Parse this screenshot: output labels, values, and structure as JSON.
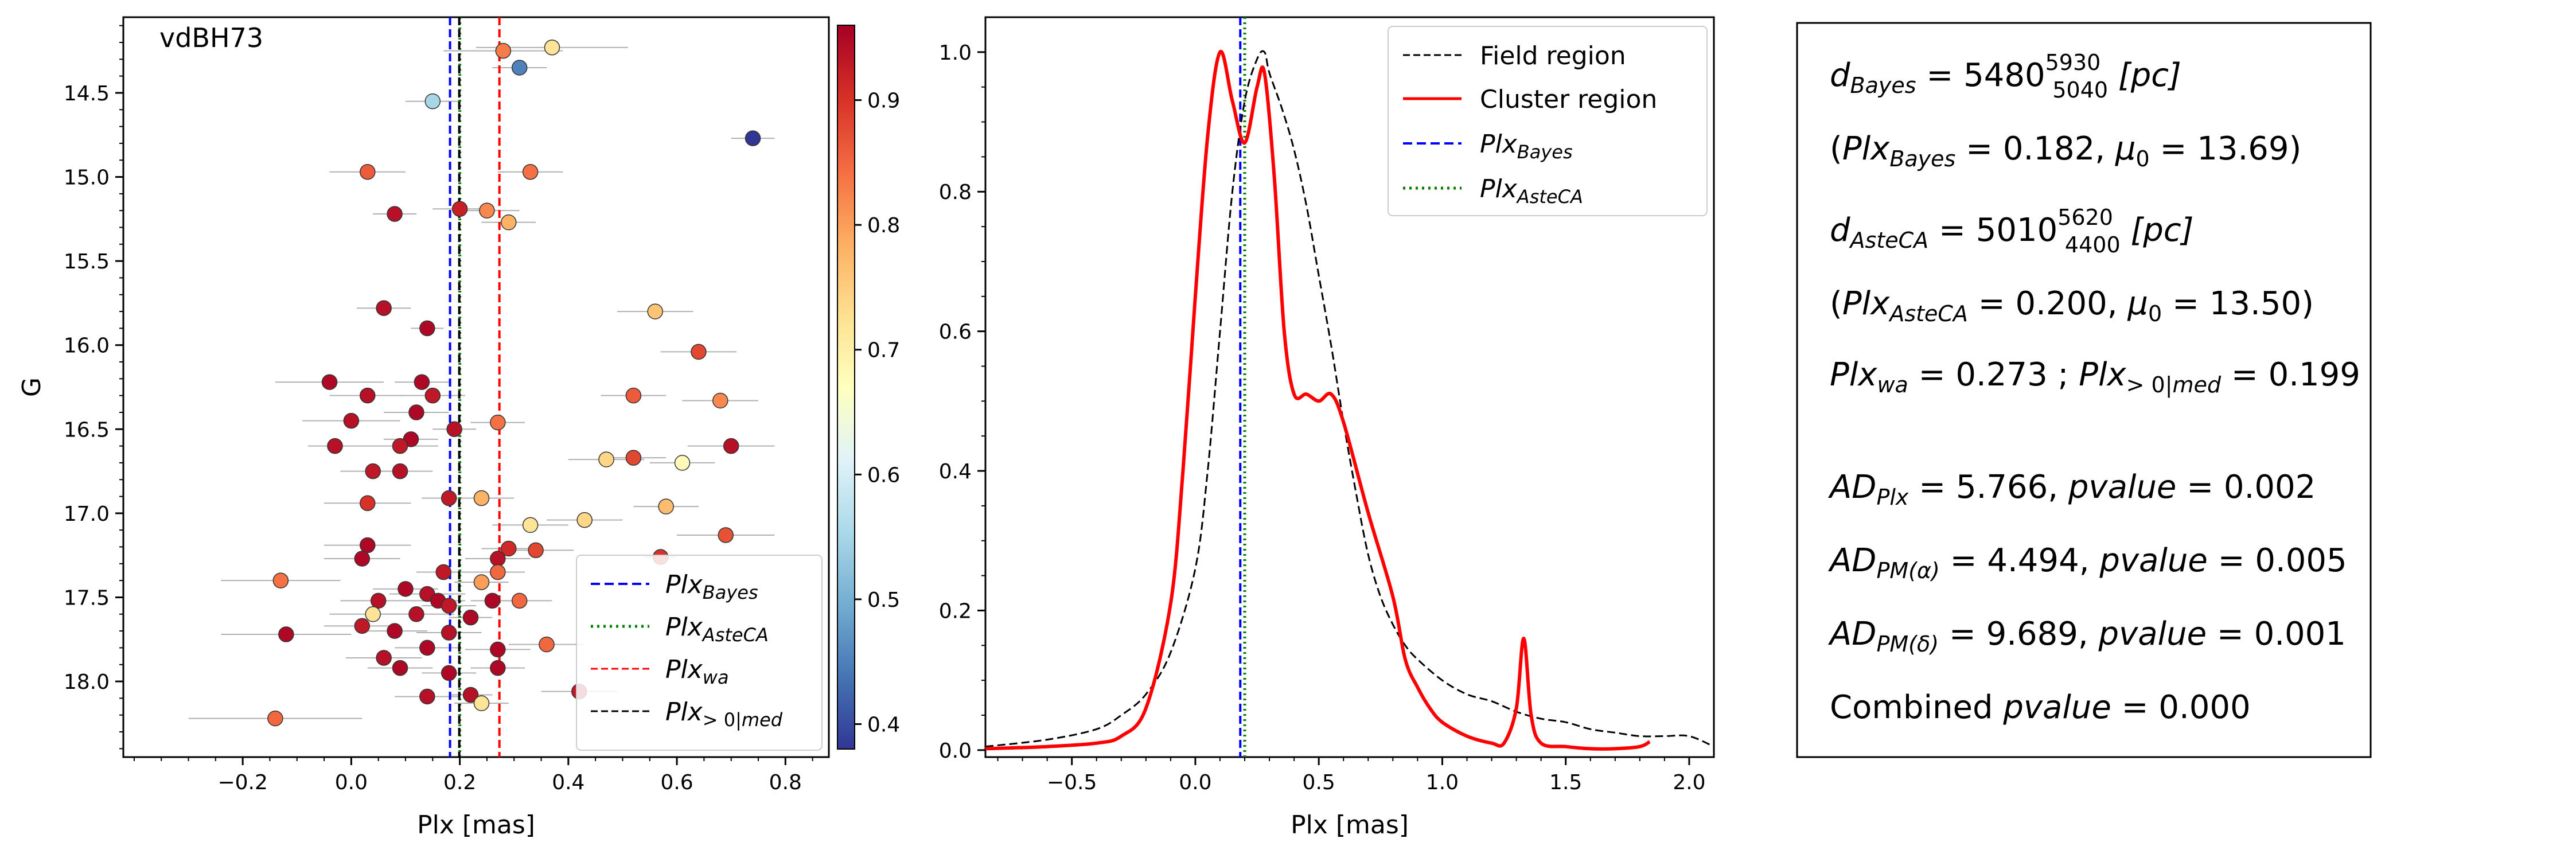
{
  "chart_data": [
    {
      "type": "scatter",
      "title": "vdBH73",
      "xlabel": "Plx [mas]",
      "ylabel": "G",
      "xlim": [
        -0.42,
        0.88
      ],
      "ylim": [
        18.45,
        14.05
      ],
      "y_inverted": true,
      "xticks": [
        -0.2,
        0.0,
        0.2,
        0.4,
        0.6,
        0.8
      ],
      "yticks": [
        14.5,
        15.0,
        15.5,
        16.0,
        16.5,
        17.0,
        17.5,
        18.0
      ],
      "colorbar": {
        "range": [
          0.38,
          0.96
        ],
        "ticks": [
          0.4,
          0.5,
          0.6,
          0.7,
          0.8,
          0.9
        ],
        "colormap": "RdYlBu_r"
      },
      "lines": [
        {
          "name": "Plx_Bayes",
          "x": 0.182,
          "color": "#0000ff",
          "style": "dashed"
        },
        {
          "name": "Plx_AsteCA",
          "x": 0.2,
          "color": "#008000",
          "style": "dotted"
        },
        {
          "name": "Plx_wa",
          "x": 0.273,
          "color": "#ff0000",
          "style": "dashed"
        },
        {
          "name": "Plx_>0|med",
          "x": 0.199,
          "color": "#000000",
          "style": "dashed"
        }
      ],
      "legend_placement": "lower-right",
      "points": [
        {
          "x": 0.37,
          "y": 14.23,
          "xerr": 0.14,
          "p": 0.72
        },
        {
          "x": 0.28,
          "y": 14.25,
          "xerr": 0.11,
          "p": 0.83
        },
        {
          "x": 0.31,
          "y": 14.35,
          "xerr": 0.05,
          "p": 0.45
        },
        {
          "x": 0.15,
          "y": 14.55,
          "xerr": 0.05,
          "p": 0.55
        },
        {
          "x": 0.74,
          "y": 14.77,
          "xerr": 0.04,
          "p": 0.38
        },
        {
          "x": 0.03,
          "y": 14.97,
          "xerr": 0.07,
          "p": 0.86
        },
        {
          "x": 0.33,
          "y": 14.97,
          "xerr": 0.06,
          "p": 0.84
        },
        {
          "x": 0.25,
          "y": 15.2,
          "xerr": 0.06,
          "p": 0.82
        },
        {
          "x": 0.2,
          "y": 15.19,
          "xerr": 0.05,
          "p": 0.92
        },
        {
          "x": 0.08,
          "y": 15.22,
          "xerr": 0.04,
          "p": 0.94
        },
        {
          "x": 0.29,
          "y": 15.27,
          "xerr": 0.05,
          "p": 0.78
        },
        {
          "x": 0.06,
          "y": 15.78,
          "xerr": 0.05,
          "p": 0.94
        },
        {
          "x": 0.56,
          "y": 15.8,
          "xerr": 0.07,
          "p": 0.76
        },
        {
          "x": 0.14,
          "y": 15.9,
          "xerr": 0.03,
          "p": 0.95
        },
        {
          "x": 0.64,
          "y": 16.04,
          "xerr": 0.07,
          "p": 0.88
        },
        {
          "x": -0.04,
          "y": 16.22,
          "xerr": 0.1,
          "p": 0.95
        },
        {
          "x": 0.13,
          "y": 16.22,
          "xerr": 0.05,
          "p": 0.95
        },
        {
          "x": 0.03,
          "y": 16.3,
          "xerr": 0.07,
          "p": 0.94
        },
        {
          "x": 0.15,
          "y": 16.3,
          "xerr": 0.06,
          "p": 0.93
        },
        {
          "x": 0.52,
          "y": 16.3,
          "xerr": 0.06,
          "p": 0.86
        },
        {
          "x": 0.68,
          "y": 16.33,
          "xerr": 0.07,
          "p": 0.82
        },
        {
          "x": 0.12,
          "y": 16.4,
          "xerr": 0.06,
          "p": 0.95
        },
        {
          "x": 0.0,
          "y": 16.45,
          "xerr": 0.09,
          "p": 0.94
        },
        {
          "x": 0.27,
          "y": 16.46,
          "xerr": 0.05,
          "p": 0.84
        },
        {
          "x": 0.19,
          "y": 16.5,
          "xerr": 0.04,
          "p": 0.94
        },
        {
          "x": 0.11,
          "y": 16.56,
          "xerr": 0.05,
          "p": 0.95
        },
        {
          "x": 0.09,
          "y": 16.6,
          "xerr": 0.07,
          "p": 0.93
        },
        {
          "x": -0.03,
          "y": 16.6,
          "xerr": 0.05,
          "p": 0.94
        },
        {
          "x": 0.7,
          "y": 16.6,
          "xerr": 0.08,
          "p": 0.94
        },
        {
          "x": 0.47,
          "y": 16.68,
          "xerr": 0.07,
          "p": 0.74
        },
        {
          "x": 0.52,
          "y": 16.67,
          "xerr": 0.06,
          "p": 0.88
        },
        {
          "x": 0.61,
          "y": 16.7,
          "xerr": 0.06,
          "p": 0.68
        },
        {
          "x": 0.04,
          "y": 16.75,
          "xerr": 0.06,
          "p": 0.93
        },
        {
          "x": 0.09,
          "y": 16.75,
          "xerr": 0.06,
          "p": 0.94
        },
        {
          "x": 0.18,
          "y": 16.91,
          "xerr": 0.05,
          "p": 0.93
        },
        {
          "x": 0.24,
          "y": 16.91,
          "xerr": 0.06,
          "p": 0.78
        },
        {
          "x": 0.03,
          "y": 16.94,
          "xerr": 0.08,
          "p": 0.9
        },
        {
          "x": 0.58,
          "y": 16.96,
          "xerr": 0.06,
          "p": 0.77
        },
        {
          "x": 0.43,
          "y": 17.04,
          "xerr": 0.07,
          "p": 0.74
        },
        {
          "x": 0.33,
          "y": 17.07,
          "xerr": 0.07,
          "p": 0.72
        },
        {
          "x": 0.69,
          "y": 17.13,
          "xerr": 0.09,
          "p": 0.87
        },
        {
          "x": 0.03,
          "y": 17.19,
          "xerr": 0.08,
          "p": 0.95
        },
        {
          "x": 0.29,
          "y": 17.21,
          "xerr": 0.05,
          "p": 0.91
        },
        {
          "x": 0.34,
          "y": 17.22,
          "xerr": 0.07,
          "p": 0.88
        },
        {
          "x": 0.57,
          "y": 17.26,
          "xerr": 0.03,
          "p": 0.9
        },
        {
          "x": 0.02,
          "y": 17.27,
          "xerr": 0.07,
          "p": 0.95
        },
        {
          "x": 0.27,
          "y": 17.27,
          "xerr": 0.06,
          "p": 0.94
        },
        {
          "x": 0.17,
          "y": 17.35,
          "xerr": 0.05,
          "p": 0.93
        },
        {
          "x": 0.27,
          "y": 17.35,
          "xerr": 0.05,
          "p": 0.85
        },
        {
          "x": -0.13,
          "y": 17.4,
          "xerr": 0.11,
          "p": 0.84
        },
        {
          "x": 0.24,
          "y": 17.41,
          "xerr": 0.05,
          "p": 0.8
        },
        {
          "x": 0.1,
          "y": 17.45,
          "xerr": 0.06,
          "p": 0.95
        },
        {
          "x": 0.14,
          "y": 17.48,
          "xerr": 0.07,
          "p": 0.94
        },
        {
          "x": 0.16,
          "y": 17.52,
          "xerr": 0.05,
          "p": 0.95
        },
        {
          "x": 0.18,
          "y": 17.55,
          "xerr": 0.05,
          "p": 0.93
        },
        {
          "x": 0.05,
          "y": 17.52,
          "xerr": 0.07,
          "p": 0.94
        },
        {
          "x": 0.26,
          "y": 17.52,
          "xerr": 0.04,
          "p": 0.95
        },
        {
          "x": 0.31,
          "y": 17.52,
          "xerr": 0.06,
          "p": 0.85
        },
        {
          "x": 0.04,
          "y": 17.6,
          "xerr": 0.08,
          "p": 0.72
        },
        {
          "x": 0.12,
          "y": 17.6,
          "xerr": 0.07,
          "p": 0.94
        },
        {
          "x": 0.22,
          "y": 17.62,
          "xerr": 0.04,
          "p": 0.95
        },
        {
          "x": 0.02,
          "y": 17.67,
          "xerr": 0.07,
          "p": 0.93
        },
        {
          "x": 0.08,
          "y": 17.7,
          "xerr": 0.06,
          "p": 0.95
        },
        {
          "x": 0.18,
          "y": 17.71,
          "xerr": 0.06,
          "p": 0.94
        },
        {
          "x": -0.12,
          "y": 17.72,
          "xerr": 0.12,
          "p": 0.95
        },
        {
          "x": 0.27,
          "y": 17.81,
          "xerr": 0.06,
          "p": 0.95
        },
        {
          "x": 0.36,
          "y": 17.78,
          "xerr": 0.07,
          "p": 0.85
        },
        {
          "x": 0.14,
          "y": 17.8,
          "xerr": 0.06,
          "p": 0.95
        },
        {
          "x": 0.06,
          "y": 17.86,
          "xerr": 0.07,
          "p": 0.94
        },
        {
          "x": 0.27,
          "y": 17.92,
          "xerr": 0.05,
          "p": 0.95
        },
        {
          "x": 0.09,
          "y": 17.92,
          "xerr": 0.06,
          "p": 0.95
        },
        {
          "x": 0.18,
          "y": 17.95,
          "xerr": 0.05,
          "p": 0.95
        },
        {
          "x": 0.42,
          "y": 18.06,
          "xerr": 0.07,
          "p": 0.93
        },
        {
          "x": 0.14,
          "y": 18.09,
          "xerr": 0.06,
          "p": 0.94
        },
        {
          "x": 0.22,
          "y": 18.08,
          "xerr": 0.04,
          "p": 0.94
        },
        {
          "x": 0.24,
          "y": 18.13,
          "xerr": 0.05,
          "p": 0.72
        },
        {
          "x": -0.14,
          "y": 18.22,
          "xerr": 0.16,
          "p": 0.85
        }
      ],
      "legend": [
        "Plx_Bayes",
        "Plx_AsteCA",
        "Plx_wa",
        "Plx_>0|med"
      ]
    },
    {
      "type": "line",
      "xlabel": "Plx [mas]",
      "ylabel": "",
      "xlim": [
        -0.85,
        2.1
      ],
      "ylim": [
        -0.01,
        1.05
      ],
      "xticks": [
        -0.5,
        0.0,
        0.5,
        1.0,
        1.5,
        2.0
      ],
      "yticks": [
        0.0,
        0.2,
        0.4,
        0.6,
        0.8,
        1.0
      ],
      "legend_placement": "top-right",
      "series": [
        {
          "name": "Field region",
          "color": "#000000",
          "style": "dashed",
          "x": [
            -0.85,
            -0.6,
            -0.4,
            -0.3,
            -0.2,
            -0.1,
            0.0,
            0.05,
            0.1,
            0.15,
            0.2,
            0.25,
            0.28,
            0.3,
            0.35,
            0.4,
            0.45,
            0.5,
            0.55,
            0.6,
            0.65,
            0.7,
            0.75,
            0.8,
            0.85,
            0.9,
            1.0,
            1.1,
            1.2,
            1.3,
            1.4,
            1.5,
            1.6,
            1.7,
            1.8,
            1.9,
            2.0,
            2.1
          ],
          "y": [
            0.005,
            0.015,
            0.03,
            0.05,
            0.08,
            0.14,
            0.26,
            0.4,
            0.6,
            0.8,
            0.93,
            0.99,
            1.0,
            0.97,
            0.92,
            0.86,
            0.78,
            0.68,
            0.58,
            0.47,
            0.37,
            0.28,
            0.22,
            0.18,
            0.15,
            0.13,
            0.1,
            0.08,
            0.07,
            0.055,
            0.045,
            0.04,
            0.03,
            0.025,
            0.02,
            0.02,
            0.02,
            0.005
          ]
        },
        {
          "name": "Cluster region",
          "color": "#ff0000",
          "style": "solid",
          "x": [
            -0.85,
            -0.6,
            -0.4,
            -0.3,
            -0.2,
            -0.1,
            -0.05,
            0.0,
            0.05,
            0.1,
            0.15,
            0.2,
            0.25,
            0.28,
            0.32,
            0.36,
            0.4,
            0.45,
            0.5,
            0.55,
            0.6,
            0.7,
            0.8,
            0.85,
            0.9,
            0.95,
            1.0,
            1.1,
            1.2,
            1.25,
            1.3,
            1.33,
            1.36,
            1.4,
            1.5,
            1.6,
            1.7,
            1.8,
            1.84
          ],
          "y": [
            0.002,
            0.005,
            0.01,
            0.02,
            0.06,
            0.21,
            0.4,
            0.65,
            0.88,
            1.0,
            0.93,
            0.87,
            0.95,
            0.97,
            0.82,
            0.6,
            0.51,
            0.51,
            0.5,
            0.51,
            0.47,
            0.34,
            0.22,
            0.13,
            0.09,
            0.06,
            0.04,
            0.02,
            0.01,
            0.01,
            0.06,
            0.16,
            0.05,
            0.01,
            0.005,
            0.002,
            0.002,
            0.005,
            0.012
          ]
        }
      ],
      "lines": [
        {
          "name": "Plx_Bayes",
          "x": 0.182,
          "color": "#0000ff",
          "style": "dashed"
        },
        {
          "name": "Plx_AsteCA",
          "x": 0.2,
          "color": "#008000",
          "style": "dotted"
        }
      ],
      "legend": [
        "Field region",
        "Cluster region",
        "Plx_Bayes",
        "Plx_AsteCA"
      ]
    }
  ],
  "stats_box": {
    "d_bayes": {
      "value": "5480",
      "upper": "5930",
      "lower": "5040",
      "unit": "[pc]"
    },
    "plx_bayes": {
      "plx": "0.182",
      "mu0": "13.69"
    },
    "d_asteca": {
      "value": "5010",
      "upper": "5620",
      "lower": "4400",
      "unit": "[pc]"
    },
    "plx_asteca": {
      "plx": "0.200",
      "mu0": "13.50"
    },
    "plx_wa": "0.273",
    "plx_med": "0.199",
    "ad_plx": {
      "value": "5.766",
      "pvalue": "0.002"
    },
    "ad_pm_alpha": {
      "value": "4.494",
      "pvalue": "0.005"
    },
    "ad_pm_delta": {
      "value": "9.689",
      "pvalue": "0.001"
    },
    "combined_pvalue": "0.000"
  }
}
